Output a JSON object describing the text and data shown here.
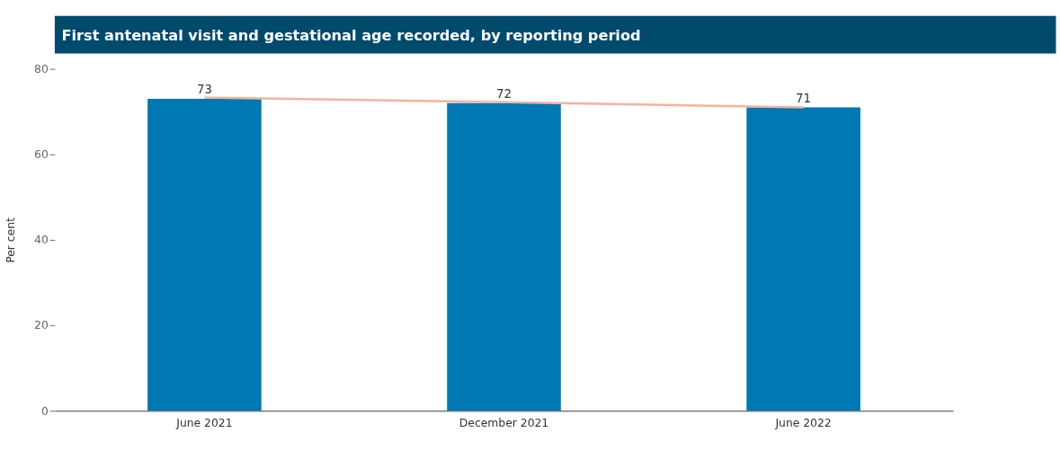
{
  "chart_data": {
    "type": "bar",
    "title": "First antenatal visit and gestational age recorded, by reporting period",
    "ylabel": "Per cent",
    "categories": [
      "June 2021",
      "December 2021",
      "June 2022"
    ],
    "series": [
      {
        "color": "#0078b4",
        "values": [
          73,
          72,
          71
        ],
        "value_labels": [
          "73",
          "72",
          "71"
        ]
      },
      {
        "type": "line",
        "color": "#f4b49b",
        "values": [
          73.3,
          72.2,
          71.0
        ]
      }
    ],
    "ylim": [
      0,
      80
    ],
    "yticks": [
      0,
      20,
      40,
      60,
      80
    ],
    "grid": false
  }
}
